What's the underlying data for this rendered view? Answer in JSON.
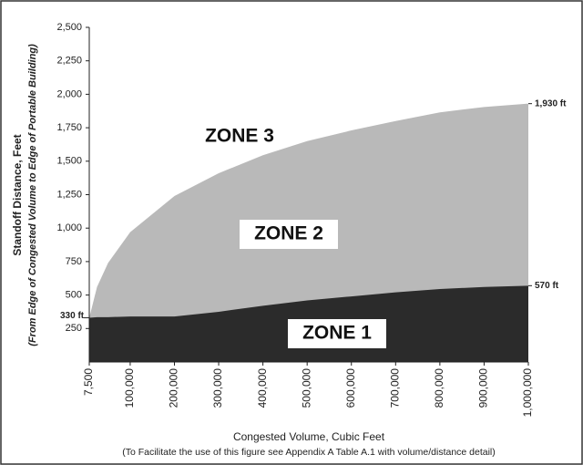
{
  "chart_data": {
    "type": "area",
    "x": [
      7500,
      25000,
      50000,
      100000,
      200000,
      300000,
      400000,
      500000,
      600000,
      700000,
      800000,
      900000,
      1000000
    ],
    "series": [
      {
        "color": "#b9b9b9",
        "values": [
          330,
          560,
          740,
          970,
          1240,
          1410,
          1545,
          1650,
          1730,
          1800,
          1865,
          1905,
          1930
        ]
      },
      {
        "color": "#2b2b2b",
        "values": [
          330,
          335,
          335,
          340,
          340,
          375,
          420,
          460,
          490,
          520,
          545,
          560,
          570
        ]
      }
    ],
    "xlim": [
      7500,
      1000000
    ],
    "ylim": [
      0,
      2500
    ],
    "xticks": [
      {
        "value": 7500,
        "label": "7,500"
      },
      {
        "value": 100000,
        "label": "100,000"
      },
      {
        "value": 200000,
        "label": "200,000"
      },
      {
        "value": 300000,
        "label": "300,000"
      },
      {
        "value": 400000,
        "label": "400,000"
      },
      {
        "value": 500000,
        "label": "500,000"
      },
      {
        "value": 600000,
        "label": "600,000"
      },
      {
        "value": 700000,
        "label": "700,000"
      },
      {
        "value": 800000,
        "label": "800,000"
      },
      {
        "value": 900000,
        "label": "900,000"
      },
      {
        "value": 1000000,
        "label": "1,000,000"
      }
    ],
    "yticks": [
      250,
      500,
      750,
      {
        "value": 1000,
        "label": "1,000"
      },
      {
        "value": 1250,
        "label": "1,250"
      },
      {
        "value": 1500,
        "label": "1,500"
      },
      {
        "value": 1750,
        "label": "1,750"
      },
      {
        "value": 2000,
        "label": "2,000"
      },
      {
        "value": 2250,
        "label": "2,250"
      },
      {
        "value": 2500,
        "label": "2,500"
      }
    ],
    "ylabel": "Standoff Distance, Feet",
    "ylabel_note": "(From Edge of Congested  Volume to Edge of Portable Building)",
    "xlabel": "Congested Volume, Cubic Feet",
    "xlabel_note": "(To Facilitate the use of this figure see Appendix A Table A.1 with volume/distance detail)",
    "zones": [
      "ZONE 3",
      "ZONE 2",
      "ZONE 1"
    ],
    "annotations": [
      {
        "text": "1,930 ft",
        "value": 1930
      },
      {
        "text": "570 ft",
        "value": 570
      },
      {
        "text": "330 ft",
        "value": 330
      }
    ]
  }
}
